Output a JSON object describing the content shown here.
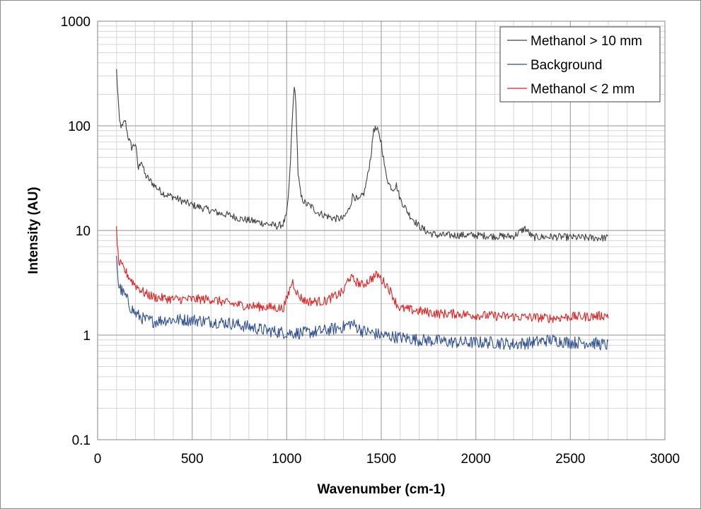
{
  "chart_data": {
    "type": "line",
    "title": "",
    "xlabel": "Wavenumber (cm-1)",
    "ylabel": "Intensity (AU)",
    "xlim": [
      0,
      3000
    ],
    "ylim": [
      0.1,
      1000
    ],
    "yscale": "log",
    "grid": true,
    "legend_position": "top-right",
    "x_ticks": [
      "0",
      "500",
      "1000",
      "1500",
      "2000",
      "2500",
      "3000"
    ],
    "y_ticks": [
      "0.1",
      "1",
      "10",
      "100",
      "1000"
    ],
    "series": [
      {
        "name": "Methanol > 10 mm",
        "color": "#404040",
        "x": [
          100,
          115,
          130,
          145,
          160,
          180,
          200,
          215,
          230,
          250,
          270,
          300,
          330,
          360,
          400,
          450,
          500,
          550,
          600,
          650,
          700,
          750,
          800,
          850,
          900,
          950,
          980,
          1000,
          1015,
          1030,
          1040,
          1050,
          1060,
          1075,
          1100,
          1130,
          1160,
          1200,
          1250,
          1300,
          1330,
          1350,
          1380,
          1410,
          1430,
          1450,
          1460,
          1480,
          1500,
          1520,
          1540,
          1560,
          1580,
          1600,
          1650,
          1700,
          1750,
          1800,
          1900,
          2000,
          2100,
          2200,
          2260,
          2300,
          2400,
          2500,
          2600,
          2700
        ],
        "values": [
          340,
          110,
          95,
          115,
          80,
          62,
          68,
          38,
          48,
          34,
          31,
          27,
          24,
          22,
          21,
          19,
          17.5,
          16.5,
          15.5,
          14.5,
          14,
          13,
          12.5,
          12,
          11.5,
          11,
          11.5,
          14,
          30,
          120,
          250,
          140,
          35,
          21,
          18,
          17,
          15,
          14,
          13,
          13,
          16,
          22,
          19,
          23,
          35,
          60,
          95,
          90,
          70,
          38,
          28,
          25,
          27,
          20,
          14,
          11,
          9.5,
          9,
          9,
          9,
          8.8,
          8.8,
          10.5,
          8.6,
          8.7,
          8.6,
          8.5,
          8.5
        ]
      },
      {
        "name": "Background",
        "color": "#2f4f8f",
        "x": [
          100,
          110,
          130,
          150,
          170,
          200,
          250,
          300,
          350,
          400,
          500,
          600,
          700,
          800,
          900,
          1000,
          1100,
          1200,
          1300,
          1340,
          1400,
          1500,
          1600,
          1700,
          1800,
          1900,
          2000,
          2100,
          2200,
          2300,
          2400,
          2500,
          2600,
          2700
        ],
        "values": [
          6,
          3,
          2.6,
          2.3,
          1.9,
          1.6,
          1.4,
          1.35,
          1.4,
          1.4,
          1.4,
          1.35,
          1.3,
          1.2,
          1.1,
          1.05,
          1.05,
          1.1,
          1.2,
          1.3,
          1.1,
          1.0,
          0.95,
          0.9,
          0.88,
          0.85,
          0.85,
          0.85,
          0.82,
          0.85,
          0.9,
          0.85,
          0.85,
          0.8
        ]
      },
      {
        "name": "Methanol < 2 mm",
        "color": "#e02020",
        "x": [
          100,
          110,
          130,
          150,
          170,
          200,
          250,
          300,
          400,
          500,
          600,
          700,
          800,
          900,
          980,
          1000,
          1030,
          1060,
          1100,
          1200,
          1300,
          1330,
          1360,
          1400,
          1450,
          1480,
          1500,
          1530,
          1560,
          1580,
          1600,
          1700,
          1800,
          1900,
          2000,
          2200,
          2400,
          2500,
          2600,
          2700
        ],
        "values": [
          10.5,
          5,
          4.5,
          4.0,
          3.5,
          3.0,
          2.5,
          2.3,
          2.2,
          2.2,
          2.2,
          2.0,
          1.9,
          1.85,
          1.8,
          2.2,
          3.3,
          2.4,
          2.1,
          2.1,
          2.6,
          3.6,
          3.3,
          3.0,
          3.5,
          3.8,
          3.4,
          3.0,
          2.4,
          2.0,
          1.8,
          1.7,
          1.6,
          1.6,
          1.55,
          1.5,
          1.45,
          1.5,
          1.5,
          1.55
        ]
      }
    ]
  }
}
